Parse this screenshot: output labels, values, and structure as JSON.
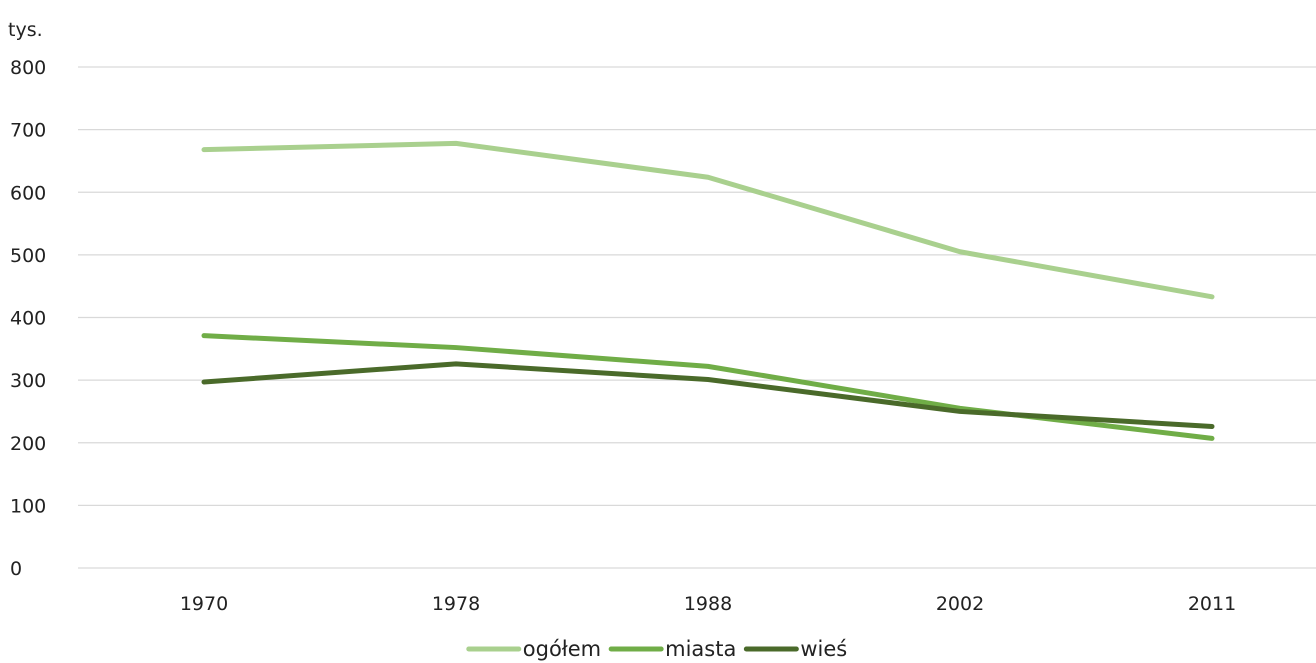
{
  "chart_data": {
    "type": "line",
    "unit_label": "tys.",
    "categories": [
      "1970",
      "1978",
      "1988",
      "2002",
      "2011"
    ],
    "ylim": [
      0,
      800
    ],
    "yticks": [
      "0",
      "100",
      "200",
      "300",
      "400",
      "500",
      "600",
      "700",
      "800"
    ],
    "grid": true,
    "legend_position": "bottom",
    "series": [
      {
        "name": "ogółem",
        "color": "#a9d08e",
        "values": [
          668,
          678,
          624,
          505,
          433
        ]
      },
      {
        "name": "miasta",
        "color": "#70ad47",
        "values": [
          371,
          352,
          322,
          255,
          207
        ]
      },
      {
        "name": "wieś",
        "color": "#4a6a2a",
        "values": [
          297,
          326,
          301,
          250,
          226
        ]
      }
    ]
  }
}
